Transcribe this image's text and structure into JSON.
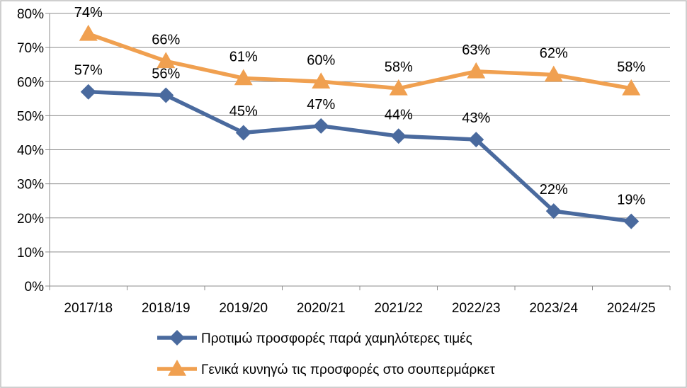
{
  "chart_data": {
    "type": "line",
    "title": "",
    "xlabel": "",
    "ylabel": "",
    "categories": [
      "2017/18",
      "2018/19",
      "2019/20",
      "2020/21",
      "2021/22",
      "2022/23",
      "2023/24",
      "2024/25"
    ],
    "ylim": [
      0,
      80
    ],
    "yticks": [
      "0%",
      "10%",
      "20%",
      "30%",
      "40%",
      "50%",
      "60%",
      "70%",
      "80%"
    ],
    "grid": true,
    "legend_position": "bottom",
    "series": [
      {
        "name": "Προτιμώ προσφορές παρά χαμηλότερες τιμές",
        "values": [
          57,
          56,
          45,
          47,
          44,
          43,
          22,
          19
        ],
        "labels": [
          "57%",
          "56%",
          "45%",
          "47%",
          "44%",
          "43%",
          "22%",
          "19%"
        ],
        "color": "#4a6a9e",
        "marker": "diamond"
      },
      {
        "name": "Γενικά κυνηγώ τις προσφορές στο σουπερμάρκετ",
        "values": [
          74,
          66,
          61,
          60,
          58,
          63,
          62,
          58
        ],
        "labels": [
          "74%",
          "66%",
          "61%",
          "60%",
          "58%",
          "63%",
          "62%",
          "58%"
        ],
        "color": "#f0a050",
        "marker": "triangle"
      }
    ]
  }
}
